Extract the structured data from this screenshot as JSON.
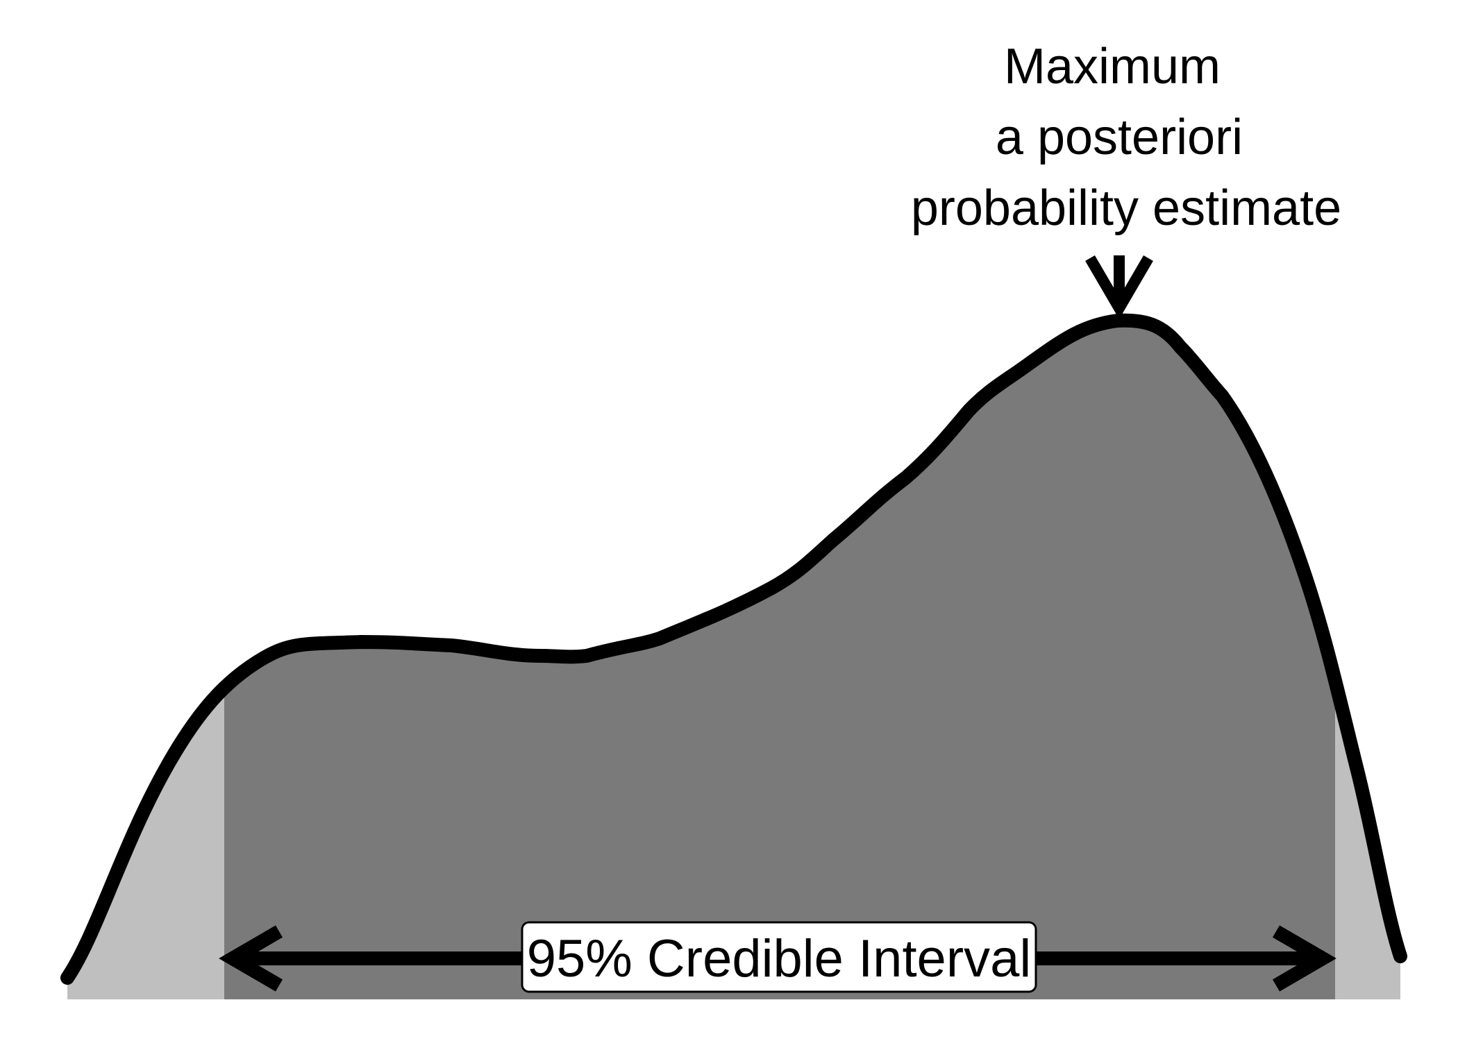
{
  "annotation": {
    "line1": "Maximum",
    "line2": "a posteriori",
    "line3": "probability estimate"
  },
  "interval": {
    "label": "95% Credible Interval"
  },
  "colors": {
    "background": "#ffffff",
    "inside_interval_fill": "#7a7a7a",
    "tail_fill": "#bfbfbf",
    "curve_stroke": "#000000",
    "label_box_fill": "#ffffff"
  }
}
